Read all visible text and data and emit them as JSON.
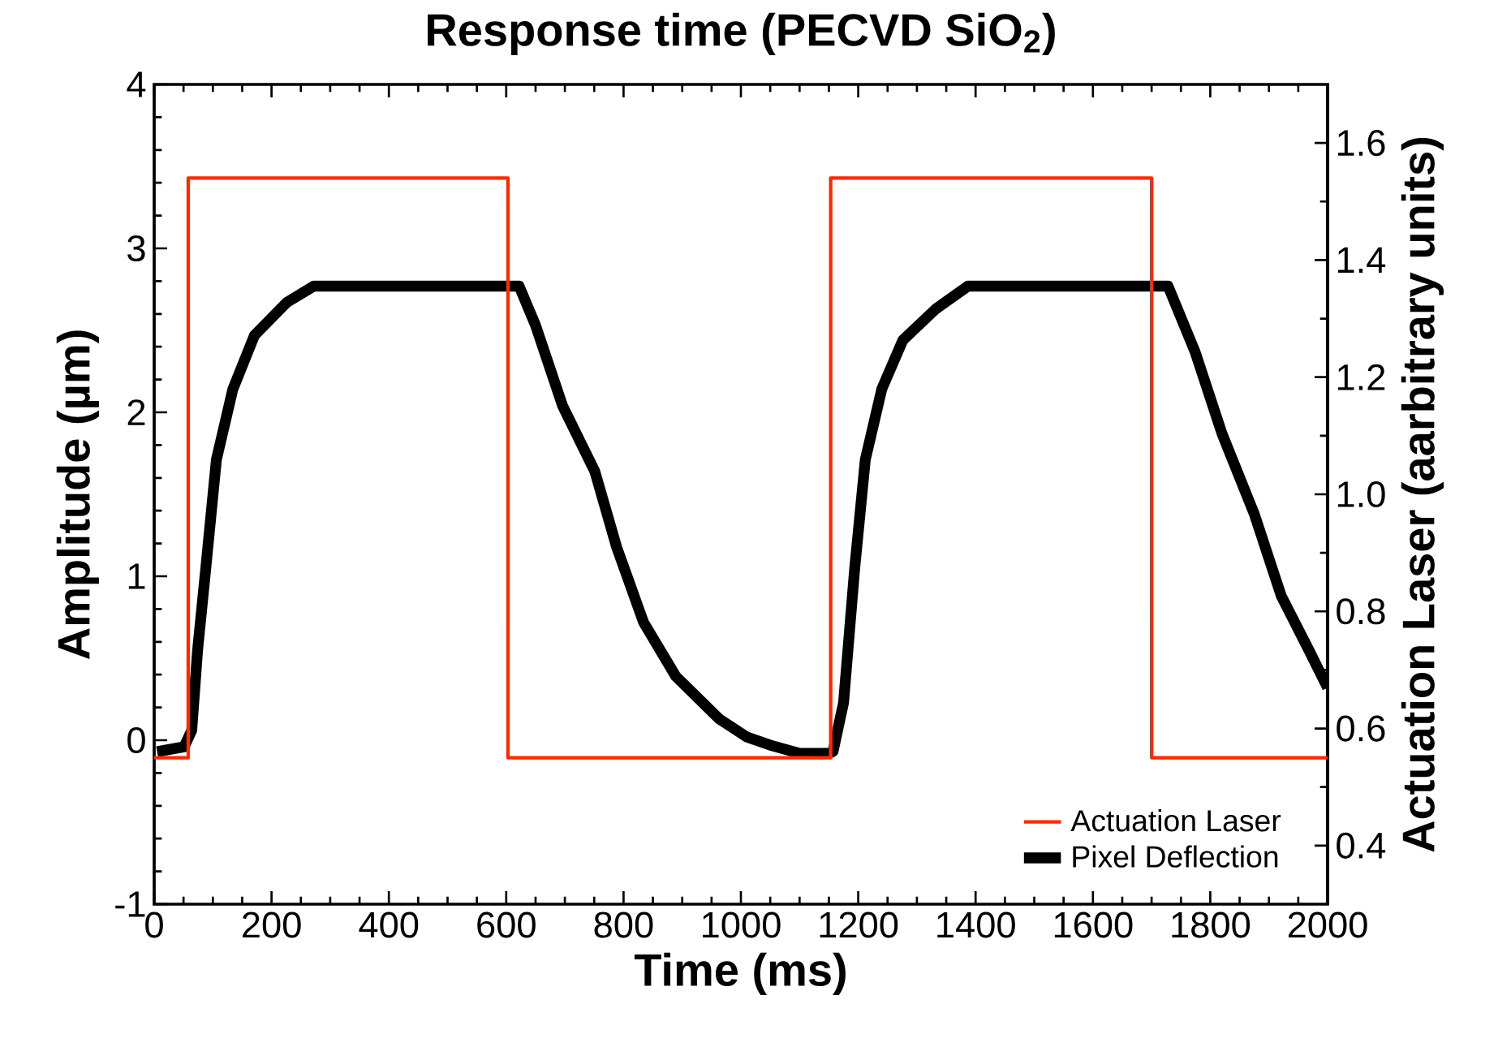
{
  "chart_data": {
    "type": "line",
    "title": "Response time (PECVD SiO$_{2}$)",
    "xlabel": "Time (ms)",
    "ylabel": "Amplitude (µm)",
    "y2label": "Actuation Laser (aarbitrary units)",
    "xlim": [
      0,
      2000
    ],
    "xticks": [
      0,
      200,
      400,
      600,
      800,
      1000,
      1200,
      1400,
      1600,
      1800,
      2000
    ],
    "ylim": [
      -1,
      4
    ],
    "yticks": [
      -1,
      0,
      1,
      2,
      3,
      4
    ],
    "y2lim": [
      0.3,
      1.7
    ],
    "y2ticks": [
      0.4,
      0.6,
      0.8,
      {
        "value": 1.0,
        "label": "1.0"
      },
      1.2,
      1.4,
      1.6
    ],
    "legend": "bottom right",
    "series": [
      {
        "name": "Actuation Laser",
        "color": "#ff2a00",
        "axis": "y2",
        "x": [
          0,
          58,
          58,
          603,
          603,
          1153,
          1153,
          1700,
          1700,
          2000
        ],
        "values": [
          0.55,
          0.55,
          1.54,
          1.54,
          0.55,
          0.55,
          1.54,
          1.54,
          0.55,
          0.55
        ]
      },
      {
        "name": "Pixel Deflection",
        "color": "#000000",
        "x": [
          5,
          51,
          64,
          74,
          88,
          106,
          134,
          171,
          226,
          272,
          450,
          622,
          650,
          696,
          751,
          788,
          834,
          889,
          963,
          1010,
          1050,
          1100,
          1150,
          1157,
          1175,
          1194,
          1212,
          1240,
          1276,
          1332,
          1387,
          1550,
          1728,
          1774,
          1820,
          1875,
          1921,
          1968,
          2000
        ],
        "values": [
          -0.07,
          -0.04,
          0.06,
          0.55,
          1.05,
          1.71,
          2.14,
          2.47,
          2.67,
          2.77,
          2.77,
          2.77,
          2.53,
          2.04,
          1.64,
          1.18,
          0.72,
          0.39,
          0.13,
          0.02,
          -0.03,
          -0.08,
          -0.08,
          -0.07,
          0.23,
          1.05,
          1.71,
          2.14,
          2.44,
          2.63,
          2.77,
          2.77,
          2.77,
          2.37,
          1.87,
          1.38,
          0.88,
          0.55,
          0.32
        ]
      }
    ]
  }
}
